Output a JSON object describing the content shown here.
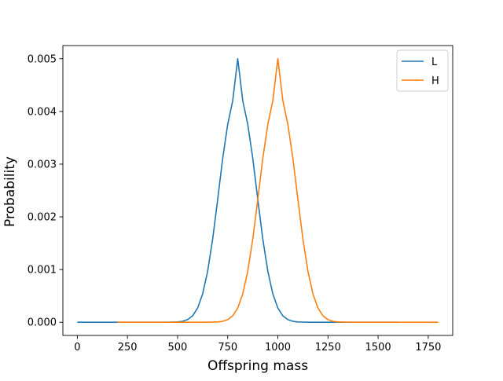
{
  "chart_data": {
    "type": "line",
    "title": "",
    "xlabel": "Offspring mass",
    "ylabel": "Probability",
    "xlim": [
      -72,
      1872
    ],
    "ylim": [
      -0.00025,
      0.00525
    ],
    "x_ticks": [
      0,
      250,
      500,
      750,
      1000,
      1250,
      1500,
      1750
    ],
    "x_tick_labels": [
      "0",
      "250",
      "500",
      "750",
      "1000",
      "1250",
      "1500",
      "1750"
    ],
    "y_ticks": [
      0.0,
      0.001,
      0.002,
      0.003,
      0.004,
      0.005
    ],
    "y_tick_labels": [
      "0.000",
      "0.001",
      "0.002",
      "0.003",
      "0.004",
      "0.005"
    ],
    "grid": false,
    "legend_position": "top-right",
    "series": [
      {
        "name": "L",
        "color": "#1f77b4",
        "x": [
          0,
          100,
          200,
          300,
          400,
          450,
          500,
          525,
          550,
          575,
          600,
          625,
          650,
          675,
          700,
          725,
          750,
          775,
          800,
          825,
          850,
          875,
          900,
          925,
          950,
          975,
          1000,
          1025,
          1050,
          1075,
          1100,
          1150,
          1200,
          1300,
          1400,
          1500,
          1600
        ],
        "y": [
          0.0,
          0.0,
          0.0,
          0.0,
          0.0,
          0.0,
          6e-06,
          1.8e-05,
          5e-05,
          0.000122,
          0.00027,
          0.000538,
          0.000969,
          0.00158,
          0.00233,
          0.00311,
          0.003755,
          0.004205,
          0.005,
          0.004205,
          0.003755,
          0.00311,
          0.00233,
          0.00158,
          0.000969,
          0.000538,
          0.00027,
          0.000122,
          5e-05,
          1.8e-05,
          6e-06,
          1e-06,
          0.0,
          0.0,
          0.0,
          0.0,
          0.0
        ]
      },
      {
        "name": "H",
        "color": "#ff7f0e",
        "x": [
          200,
          300,
          400,
          500,
          600,
          650,
          700,
          725,
          750,
          775,
          800,
          825,
          850,
          875,
          900,
          925,
          950,
          975,
          1000,
          1025,
          1050,
          1075,
          1100,
          1125,
          1150,
          1175,
          1200,
          1225,
          1250,
          1275,
          1300,
          1350,
          1400,
          1500,
          1600,
          1700,
          1800
        ],
        "y": [
          0.0,
          0.0,
          0.0,
          0.0,
          0.0,
          1e-06,
          6e-06,
          1.8e-05,
          5e-05,
          0.000122,
          0.00027,
          0.000538,
          0.000969,
          0.00158,
          0.00233,
          0.00311,
          0.003755,
          0.004205,
          0.005,
          0.004205,
          0.003755,
          0.00311,
          0.00233,
          0.00158,
          0.000969,
          0.000538,
          0.00027,
          0.000122,
          5e-05,
          1.8e-05,
          6e-06,
          1e-06,
          0.0,
          0.0,
          0.0,
          0.0,
          0.0
        ]
      }
    ]
  }
}
